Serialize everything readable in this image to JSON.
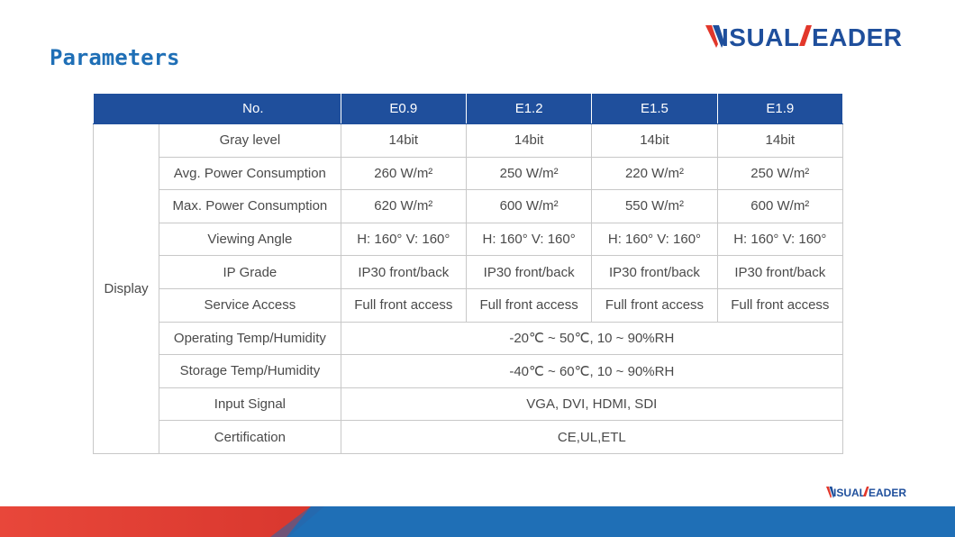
{
  "title": "Parameters",
  "brand": {
    "logo_text": "VISUALEADER",
    "accent_blue": "#1f4f9c",
    "accent_red": "#e2372b"
  },
  "table": {
    "header": {
      "no_label": "No.",
      "models": [
        "E0.9",
        "E1.2",
        "E1.5",
        "E1.9"
      ]
    },
    "group_label": "Display",
    "rows": [
      {
        "label": "Gray level",
        "values": [
          "14bit",
          "14bit",
          "14bit",
          "14bit"
        ]
      },
      {
        "label": "Avg. Power Consumption",
        "values": [
          "260 W/m²",
          "250 W/m²",
          "220 W/m²",
          "250 W/m²"
        ]
      },
      {
        "label": "Max. Power Consumption",
        "values": [
          "620 W/m²",
          "600 W/m²",
          "550 W/m²",
          "600 W/m²"
        ]
      },
      {
        "label": "Viewing Angle",
        "values": [
          "H: 160°  V: 160°",
          "H: 160°  V: 160°",
          "H: 160°  V: 160°",
          "H: 160°  V: 160°"
        ]
      },
      {
        "label": "IP Grade",
        "values": [
          "IP30 front/back",
          "IP30 front/back",
          "IP30 front/back",
          "IP30 front/back"
        ]
      },
      {
        "label": "Service Access",
        "values": [
          "Full front access",
          "Full front access",
          "Full front access",
          "Full front access"
        ]
      }
    ],
    "merged_rows": [
      {
        "label": "Operating Temp/Humidity",
        "value": "-20℃ ~ 50℃, 10 ~ 90%RH"
      },
      {
        "label": "Storage Temp/Humidity",
        "value": "-40℃ ~ 60℃, 10 ~ 90%RH"
      },
      {
        "label": "Input Signal",
        "value": "VGA, DVI, HDMI, SDI"
      },
      {
        "label": "Certification",
        "value": "CE,UL,ETL"
      }
    ]
  }
}
